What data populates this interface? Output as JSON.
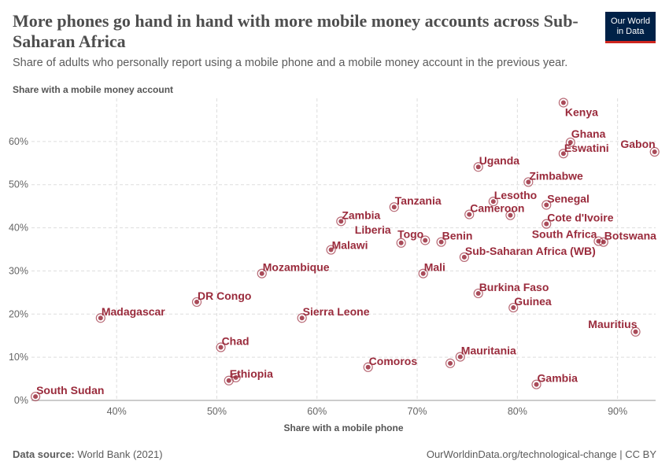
{
  "header": {
    "title": "More phones go hand in hand with more mobile money accounts across Sub-Saharan Africa",
    "subtitle": "Share of adults who personally report using a mobile phone and a mobile money account in the previous year.",
    "logo_line1": "Our World",
    "logo_line2": "in Data"
  },
  "footer": {
    "source_label": "Data source:",
    "source": "World Bank (2021)",
    "credit": "OurWorldinData.org/technological-change | CC BY"
  },
  "chart_data": {
    "type": "scatter",
    "title": "More phones go hand in hand with more mobile money accounts across Sub-Saharan Africa",
    "xlabel": "Share with a mobile phone",
    "ylabel": "Share with a mobile money account",
    "xlim": [
      31.5,
      93.8
    ],
    "ylim": [
      0,
      70
    ],
    "xticks": [
      {
        "v": 40,
        "label": "40%"
      },
      {
        "v": 50,
        "label": "50%"
      },
      {
        "v": 60,
        "label": "60%"
      },
      {
        "v": 70,
        "label": "70%"
      },
      {
        "v": 80,
        "label": "80%"
      },
      {
        "v": 90,
        "label": "90%"
      }
    ],
    "yticks": [
      {
        "v": 0,
        "label": "0%"
      },
      {
        "v": 10,
        "label": "10%"
      },
      {
        "v": 20,
        "label": "20%"
      },
      {
        "v": 30,
        "label": "30%"
      },
      {
        "v": 40,
        "label": "40%"
      },
      {
        "v": 50,
        "label": "50%"
      },
      {
        "v": 60,
        "label": "60%"
      }
    ],
    "grid": true,
    "color": "#9a2b3c",
    "points": [
      {
        "label": "Kenya",
        "x": 84.6,
        "y": 69.0
      },
      {
        "label": "Ghana",
        "x": 85.3,
        "y": 59.8
      },
      {
        "label": "Eswatini",
        "x": 84.6,
        "y": 57.2
      },
      {
        "label": "Gabon",
        "x": 93.7,
        "y": 57.6
      },
      {
        "label": "Uganda",
        "x": 76.1,
        "y": 54.1
      },
      {
        "label": "Zimbabwe",
        "x": 81.1,
        "y": 50.6
      },
      {
        "label": "Lesotho",
        "x": 77.6,
        "y": 46.1
      },
      {
        "label": "Senegal",
        "x": 82.9,
        "y": 45.3
      },
      {
        "label": "Tanzania",
        "x": 67.7,
        "y": 44.8
      },
      {
        "label": "Cameroon",
        "x": 75.2,
        "y": 43.1
      },
      {
        "label": "",
        "x": 79.3,
        "y": 42.9
      },
      {
        "label": "Zambia",
        "x": 62.4,
        "y": 41.5
      },
      {
        "label": "Cote d'Ivoire",
        "x": 82.9,
        "y": 40.9
      },
      {
        "label": "South Africa",
        "x": 88.1,
        "y": 36.9
      },
      {
        "label": "Botswana",
        "x": 88.6,
        "y": 36.7
      },
      {
        "label": "Liberia",
        "x": 68.4,
        "y": 36.5
      },
      {
        "label": "Togo",
        "x": 70.8,
        "y": 37.1
      },
      {
        "label": "Benin",
        "x": 72.4,
        "y": 36.7
      },
      {
        "label": "Malawi",
        "x": 61.4,
        "y": 34.9
      },
      {
        "label": "Sub-Saharan Africa (WB)",
        "x": 74.7,
        "y": 33.2
      },
      {
        "label": "Mozambique",
        "x": 54.5,
        "y": 29.4
      },
      {
        "label": "Mali",
        "x": 70.6,
        "y": 29.4
      },
      {
        "label": "Burkina Faso",
        "x": 76.1,
        "y": 24.8
      },
      {
        "label": "DR Congo",
        "x": 48.0,
        "y": 22.8
      },
      {
        "label": "Guinea",
        "x": 79.6,
        "y": 21.5
      },
      {
        "label": "Madagascar",
        "x": 38.4,
        "y": 19.1
      },
      {
        "label": "Sierra Leone",
        "x": 58.5,
        "y": 19.1
      },
      {
        "label": "Mauritius",
        "x": 91.8,
        "y": 15.9
      },
      {
        "label": "Chad",
        "x": 50.4,
        "y": 12.3
      },
      {
        "label": "Mauritania",
        "x": 74.3,
        "y": 10.1
      },
      {
        "label": "",
        "x": 73.3,
        "y": 8.6
      },
      {
        "label": "Comoros",
        "x": 65.1,
        "y": 7.7
      },
      {
        "label": "Ethiopia",
        "x": 51.2,
        "y": 4.6
      },
      {
        "label": "",
        "x": 51.9,
        "y": 5.3
      },
      {
        "label": "Gambia",
        "x": 81.9,
        "y": 3.7
      },
      {
        "label": "South Sudan",
        "x": 31.9,
        "y": 0.9
      }
    ]
  }
}
